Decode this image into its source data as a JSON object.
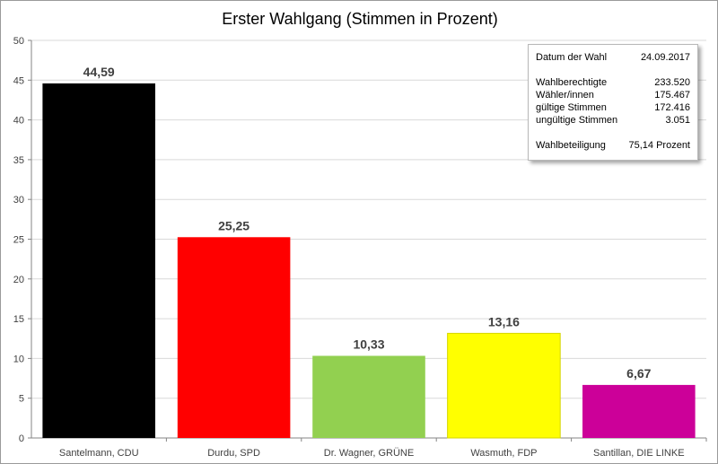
{
  "chart_data": {
    "type": "bar",
    "title": "Erster Wahlgang (Stimmen in Prozent)",
    "categories": [
      "Santelmann, CDU",
      "Durdu, SPD",
      "Dr. Wagner, GRÜNE",
      "Wasmuth, FDP",
      "Santillan, DIE LINKE"
    ],
    "values": [
      44.59,
      25.25,
      10.33,
      13.16,
      6.67
    ],
    "value_labels": [
      "44,59",
      "25,25",
      "10,33",
      "13,16",
      "6,67"
    ],
    "colors": [
      "#000000",
      "#ff0000",
      "#92d050",
      "#ffff00",
      "#cc0099"
    ],
    "ylim": [
      0,
      50
    ],
    "yticks": [
      0,
      5,
      10,
      15,
      20,
      25,
      30,
      35,
      40,
      45,
      50
    ],
    "grid": true,
    "xlabel": "",
    "ylabel": ""
  },
  "info_box": {
    "date_label": "Datum der Wahl",
    "date_value": "24.09.2017",
    "eligible_label": "Wahlberechtigte",
    "eligible_value": "233.520",
    "voters_label": "Wähler/innen",
    "voters_value": "175.467",
    "valid_label": "gültige Stimmen",
    "valid_value": "172.416",
    "invalid_label": "ungültige Stimmen",
    "invalid_value": "3.051",
    "turnout_label": "Wahlbeteiligung",
    "turnout_value": "75,14 Prozent"
  }
}
